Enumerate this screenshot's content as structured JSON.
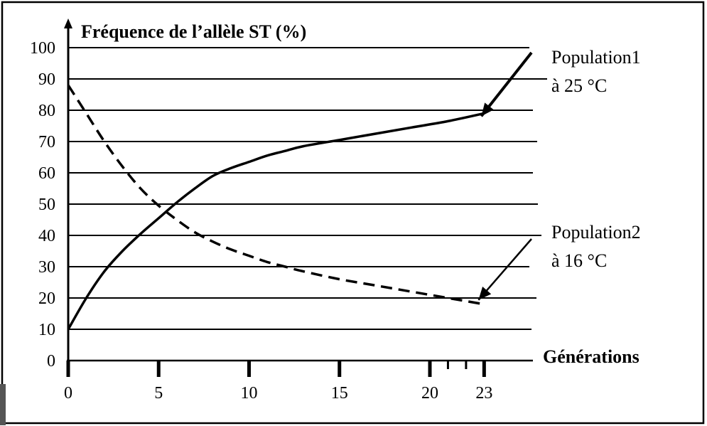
{
  "chart_data": {
    "type": "line",
    "ylabel": "Fréquence de l’allèle ST (%)",
    "xlabel": "Générations",
    "ylim": [
      0,
      100
    ],
    "xlim": [
      0,
      26
    ],
    "y_ticks": [
      "0",
      "10",
      "20",
      "30",
      "40",
      "50",
      "60",
      "70",
      "80",
      "90",
      "100"
    ],
    "x_ticks": [
      {
        "value": 0,
        "label": "0"
      },
      {
        "value": 5,
        "label": "5"
      },
      {
        "value": 10,
        "label": "10"
      },
      {
        "value": 15,
        "label": "15"
      },
      {
        "value": 20,
        "label": "20"
      },
      {
        "value": 23,
        "label": "23"
      }
    ],
    "x_minor_ticks": [
      21,
      22
    ],
    "grid": "horizontal",
    "series": [
      {
        "label_line1": "Population1",
        "label_line2": "à 25 °C",
        "style": "solid",
        "x": [
          0,
          1,
          2,
          3,
          4,
          5,
          6,
          7,
          8,
          9,
          10,
          11,
          12,
          13,
          15,
          17,
          19,
          21,
          23
        ],
        "y": [
          10,
          20,
          28.5,
          35,
          40.5,
          45.5,
          50.5,
          55,
          59,
          61.5,
          63.5,
          65.5,
          67,
          68.5,
          70.5,
          72.5,
          74.5,
          76.5,
          79
        ]
      },
      {
        "label_line1": "Population2",
        "label_line2": "à 16 °C",
        "style": "dashed",
        "x": [
          0,
          1,
          2,
          3,
          4,
          5,
          6,
          7,
          8,
          9,
          10,
          11,
          12,
          13,
          15,
          17,
          19,
          21,
          23
        ],
        "y": [
          88,
          79,
          70,
          62,
          55,
          49.5,
          45,
          41,
          38,
          35.5,
          33.5,
          31.5,
          30,
          28.5,
          26,
          24,
          22,
          20,
          18
        ]
      }
    ]
  }
}
